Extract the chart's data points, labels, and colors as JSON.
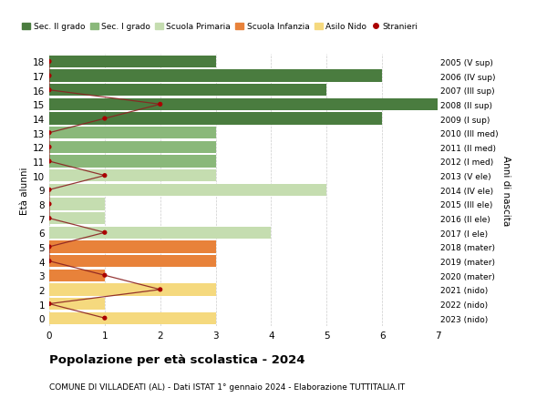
{
  "ages": [
    18,
    17,
    16,
    15,
    14,
    13,
    12,
    11,
    10,
    9,
    8,
    7,
    6,
    5,
    4,
    3,
    2,
    1,
    0
  ],
  "right_labels": [
    "2005 (V sup)",
    "2006 (IV sup)",
    "2007 (III sup)",
    "2008 (II sup)",
    "2009 (I sup)",
    "2010 (III med)",
    "2011 (II med)",
    "2012 (I med)",
    "2013 (V ele)",
    "2014 (IV ele)",
    "2015 (III ele)",
    "2016 (II ele)",
    "2017 (I ele)",
    "2018 (mater)",
    "2019 (mater)",
    "2020 (mater)",
    "2021 (nido)",
    "2022 (nido)",
    "2023 (nido)"
  ],
  "bar_values": [
    3,
    6,
    5,
    7,
    6,
    3,
    3,
    3,
    3,
    5,
    1,
    1,
    4,
    3,
    3,
    1,
    3,
    1,
    3
  ],
  "bar_colors": [
    "#4a7c3f",
    "#4a7c3f",
    "#4a7c3f",
    "#4a7c3f",
    "#4a7c3f",
    "#8ab87a",
    "#8ab87a",
    "#8ab87a",
    "#c5ddb0",
    "#c5ddb0",
    "#c5ddb0",
    "#c5ddb0",
    "#c5ddb0",
    "#e8823a",
    "#e8823a",
    "#e8823a",
    "#f5d97e",
    "#f5d97e",
    "#f5d97e"
  ],
  "stranieri_values": [
    0,
    0,
    0,
    2,
    1,
    0,
    0,
    0,
    1,
    0,
    0,
    0,
    1,
    0,
    0,
    1,
    2,
    0,
    1
  ],
  "legend_labels": [
    "Sec. II grado",
    "Sec. I grado",
    "Scuola Primaria",
    "Scuola Infanzia",
    "Asilo Nido",
    "Stranieri"
  ],
  "legend_colors": [
    "#4a7c3f",
    "#8ab87a",
    "#c5ddb0",
    "#e8823a",
    "#f5d97e",
    "#aa0000"
  ],
  "title": "Popolazione per età scolastica - 2024",
  "subtitle": "COMUNE DI VILLADEATI (AL) - Dati ISTAT 1° gennaio 2024 - Elaborazione TUTTITALIA.IT",
  "ylabel_left": "Età alunni",
  "ylabel_right": "Anni di nascita",
  "xlim": [
    0,
    7
  ],
  "background_color": "#ffffff",
  "grid_color": "#cccccc",
  "bar_height": 0.85,
  "stranieri_color": "#aa0000",
  "stranieri_line_color": "#8b2222"
}
